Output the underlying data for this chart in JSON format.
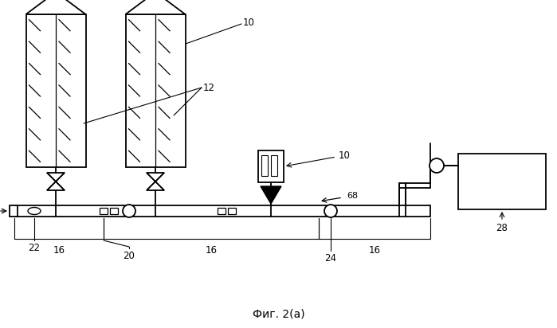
{
  "title": "Фиг. 2(а)",
  "bg_color": "#ffffff",
  "line_color": "#000000",
  "fig_width": 6.99,
  "fig_height": 4.12,
  "dpi": 100
}
